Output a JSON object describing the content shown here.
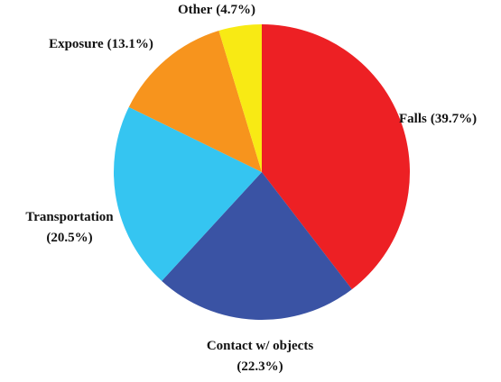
{
  "chart_data": {
    "type": "pie",
    "categories": [
      "Falls",
      "Contact w/ objects",
      "Transportation",
      "Exposure",
      "Other"
    ],
    "values": [
      39.7,
      22.3,
      20.5,
      13.1,
      4.7
    ],
    "value_labels": [
      "(39.7%)",
      "(22.3%)",
      "(20.5%)",
      "(13.1%)",
      "(4.7%)"
    ],
    "colors": [
      "#ed2024",
      "#3a53a4",
      "#35c5f1",
      "#f7941d",
      "#f8ea14"
    ]
  }
}
